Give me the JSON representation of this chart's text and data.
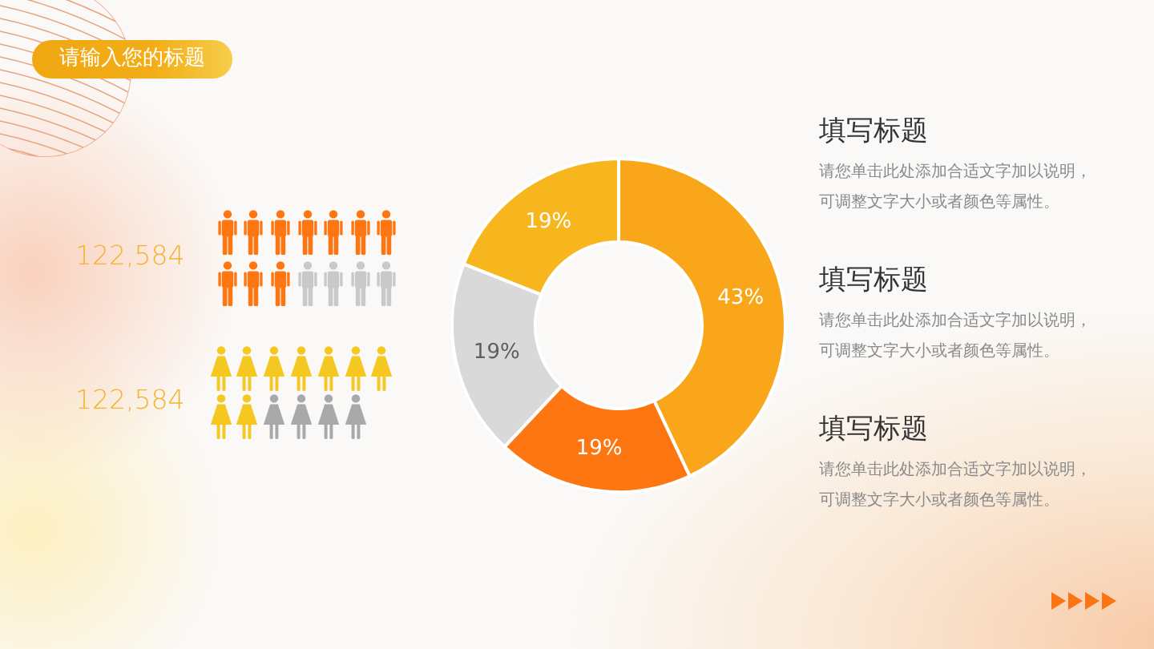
{
  "chart_data": {
    "type": "donut",
    "title": "请输入您的标题",
    "categories": [
      null,
      null,
      null,
      null
    ],
    "values": [
      43,
      19,
      19,
      19
    ],
    "colors": [
      "#f9a61b",
      "#fd7611",
      "#d9d9d9",
      "#f7b61d"
    ],
    "value_labels": [
      "43%",
      "19%",
      "19%",
      "19%"
    ],
    "annotations": [
      "122,584",
      "122,584",
      "填写标题",
      "请您单击此处添加合适文字加以说明，可调整文字大小或者颜色等属性。",
      "填写标题",
      "请您单击此处添加合适文字加以说明，可调整文字大小或者颜色等属性。",
      "填写标题",
      "请您单击此处添加合适文字加以说明，可调整文字大小或者颜色等属性。"
    ]
  }
}
